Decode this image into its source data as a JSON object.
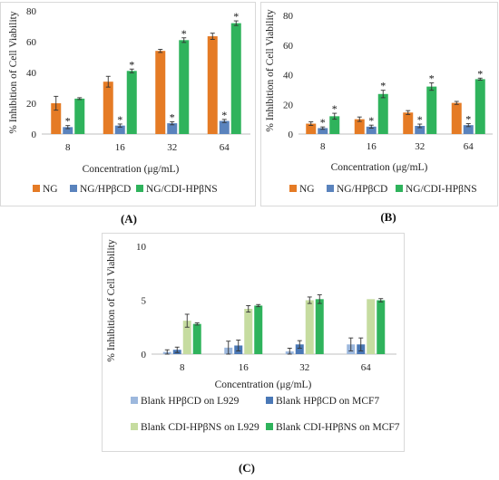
{
  "chart_data": [
    {
      "id": "A",
      "panel_label": "(A)",
      "type": "bar",
      "xlabel": "Concentration (μg/mL)",
      "ylabel": "% Inhibition of Cell Viability",
      "ylim": [
        0,
        80
      ],
      "yticks": [
        0,
        20,
        40,
        60,
        80
      ],
      "categories": [
        "8",
        "16",
        "32",
        "64"
      ],
      "legend_position": "bottom",
      "series": [
        {
          "name": "NG",
          "color": "#e57b25",
          "values": [
            20,
            34,
            54,
            63.5
          ],
          "errors": [
            4.5,
            3.5,
            1,
            2
          ],
          "sig": [
            false,
            false,
            false,
            false
          ]
        },
        {
          "name": "NG/HPβCD",
          "color": "#5a83bd",
          "values": [
            4.5,
            5.5,
            7,
            8.5
          ],
          "errors": [
            1,
            1,
            1,
            1
          ],
          "sig": [
            true,
            true,
            true,
            true
          ]
        },
        {
          "name": "NG/CDI-HPβNS",
          "color": "#2fb35c",
          "values": [
            23,
            41,
            61,
            72
          ],
          "errors": [
            0.6,
            1.2,
            1.5,
            1.5
          ],
          "sig": [
            false,
            true,
            true,
            true
          ]
        }
      ]
    },
    {
      "id": "B",
      "panel_label": "(B)",
      "type": "bar",
      "xlabel": "Concentration (μg/mL)",
      "ylabel": "% Inhibition of Cell Viability",
      "ylim": [
        0,
        80
      ],
      "yticks": [
        0,
        20,
        40,
        60,
        80
      ],
      "categories": [
        "8",
        "16",
        "32",
        "64"
      ],
      "legend_position": "bottom",
      "series": [
        {
          "name": "NG",
          "color": "#e57b25",
          "values": [
            7,
            10,
            14.5,
            21
          ],
          "errors": [
            1.2,
            1.5,
            1.3,
            1
          ],
          "sig": [
            false,
            false,
            false,
            false
          ]
        },
        {
          "name": "NG/HPβCD",
          "color": "#5a83bd",
          "values": [
            4,
            5,
            5.5,
            6
          ],
          "errors": [
            0.8,
            1,
            1.2,
            1
          ],
          "sig": [
            true,
            true,
            true,
            true
          ]
        },
        {
          "name": "NG/CDI-HPβNS",
          "color": "#2fb35c",
          "values": [
            12,
            27,
            32,
            37
          ],
          "errors": [
            2,
            2.5,
            2.5,
            0.7
          ],
          "sig": [
            true,
            true,
            true,
            true
          ]
        }
      ]
    },
    {
      "id": "C",
      "panel_label": "(C)",
      "type": "bar",
      "xlabel": "Concentration (μg/mL)",
      "ylabel": "% Inhibition of Cell Viability",
      "ylim": [
        0,
        10
      ],
      "yticks": [
        0,
        5,
        10
      ],
      "categories": [
        "8",
        "16",
        "32",
        "64"
      ],
      "legend_position": "bottom",
      "series": [
        {
          "name": "Blank HPβCD on L929",
          "color": "#9db8dd",
          "values": [
            0.2,
            0.6,
            0.25,
            0.9
          ],
          "errors": [
            0.2,
            0.6,
            0.3,
            0.6
          ],
          "sig": [
            false,
            false,
            false,
            false
          ]
        },
        {
          "name": "Blank HPβCD on MCF7",
          "color": "#4a78b6",
          "values": [
            0.4,
            0.8,
            0.9,
            0.9
          ],
          "errors": [
            0.25,
            0.5,
            0.35,
            0.6
          ],
          "sig": [
            false,
            false,
            false,
            false
          ]
        },
        {
          "name": "Blank CDI-HPβNS on L929",
          "color": "#c6dca0",
          "values": [
            3.1,
            4.2,
            5.0,
            5.1
          ],
          "errors": [
            0.6,
            0.3,
            0.3,
            0
          ],
          "sig": [
            false,
            false,
            false,
            false
          ]
        },
        {
          "name": "Blank CDI-HPβNS on MCF7",
          "color": "#2fb35c",
          "values": [
            2.8,
            4.5,
            5.1,
            5.0
          ],
          "errors": [
            0.1,
            0.1,
            0.4,
            0.15
          ],
          "sig": [
            false,
            false,
            false,
            false
          ]
        }
      ]
    }
  ]
}
